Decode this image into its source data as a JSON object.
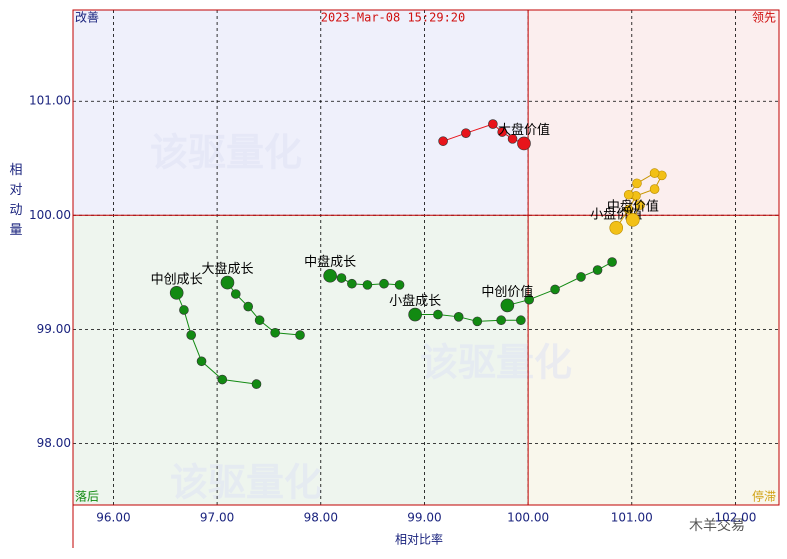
{
  "chart_data": {
    "type": "scatter",
    "title": "2023-Mar-08 15:29:20",
    "x_label": "相对比率",
    "y_label": "相对动量",
    "quadrants": {
      "top_left": "改善",
      "top_right": "领先",
      "bottom_left": "落后",
      "bottom_right": "停滞"
    },
    "quadrant_center": {
      "x": 100,
      "y": 100
    },
    "watermark": "该驱量化",
    "source": "木羊交易",
    "grid": true,
    "xlim": [
      95.61,
      102.42
    ],
    "ylim": [
      97.46,
      101.8
    ],
    "xticks": [
      {
        "value": 96,
        "label": "96.00"
      },
      {
        "value": 97,
        "label": "97.00"
      },
      {
        "value": 98,
        "label": "98.00"
      },
      {
        "value": 99,
        "label": "99.00"
      },
      {
        "value": 100,
        "label": "100.00"
      },
      {
        "value": 101,
        "label": "101.00"
      },
      {
        "value": 102,
        "label": "102.00"
      }
    ],
    "yticks": [
      {
        "value": 98,
        "label": "98.00"
      },
      {
        "value": 99,
        "label": "99.00"
      },
      {
        "value": 100,
        "label": "100.00"
      },
      {
        "value": 101,
        "label": "101.00"
      }
    ],
    "series": [
      {
        "name": "大盘价值",
        "color": "#e8141b",
        "x": [
          99.18,
          99.4,
          99.66,
          99.75,
          99.85,
          99.96
        ],
        "y": [
          100.65,
          100.72,
          100.8,
          100.73,
          100.67,
          100.63
        ]
      },
      {
        "name": "小盘价值",
        "color": "#f2c016",
        "x": [
          101.29,
          101.22,
          101.04,
          100.97,
          100.85
        ],
        "y": [
          100.35,
          100.23,
          100.17,
          100.05,
          99.89
        ]
      },
      {
        "name": "中盘价值",
        "color": "#f2c016",
        "x": [
          101.22,
          101.05,
          100.97,
          101.08,
          101.01
        ],
        "y": [
          100.37,
          100.28,
          100.18,
          100.09,
          99.96
        ]
      },
      {
        "name": "中创价值",
        "color": "#128a12",
        "x": [
          100.81,
          100.67,
          100.51,
          100.26,
          100.01,
          99.8
        ],
        "y": [
          99.59,
          99.52,
          99.46,
          99.35,
          99.26,
          99.21
        ]
      },
      {
        "name": "小盘成长",
        "color": "#128a12",
        "x": [
          99.93,
          99.74,
          99.51,
          99.33,
          99.13,
          98.91
        ],
        "y": [
          99.08,
          99.08,
          99.07,
          99.11,
          99.13,
          99.13
        ]
      },
      {
        "name": "中盘成长",
        "color": "#128a12",
        "x": [
          98.76,
          98.61,
          98.45,
          98.3,
          98.2,
          98.09
        ],
        "y": [
          99.39,
          99.4,
          99.39,
          99.4,
          99.45,
          99.47
        ]
      },
      {
        "name": "大盘成长",
        "color": "#128a12",
        "x": [
          97.8,
          97.56,
          97.41,
          97.3,
          97.18,
          97.1
        ],
        "y": [
          98.95,
          98.97,
          99.08,
          99.2,
          99.31,
          99.41
        ]
      },
      {
        "name": "中创成长",
        "color": "#128a12",
        "x": [
          97.38,
          97.05,
          96.85,
          96.75,
          96.68,
          96.61
        ],
        "y": [
          98.52,
          98.56,
          98.72,
          98.95,
          99.17,
          99.32
        ]
      }
    ]
  }
}
